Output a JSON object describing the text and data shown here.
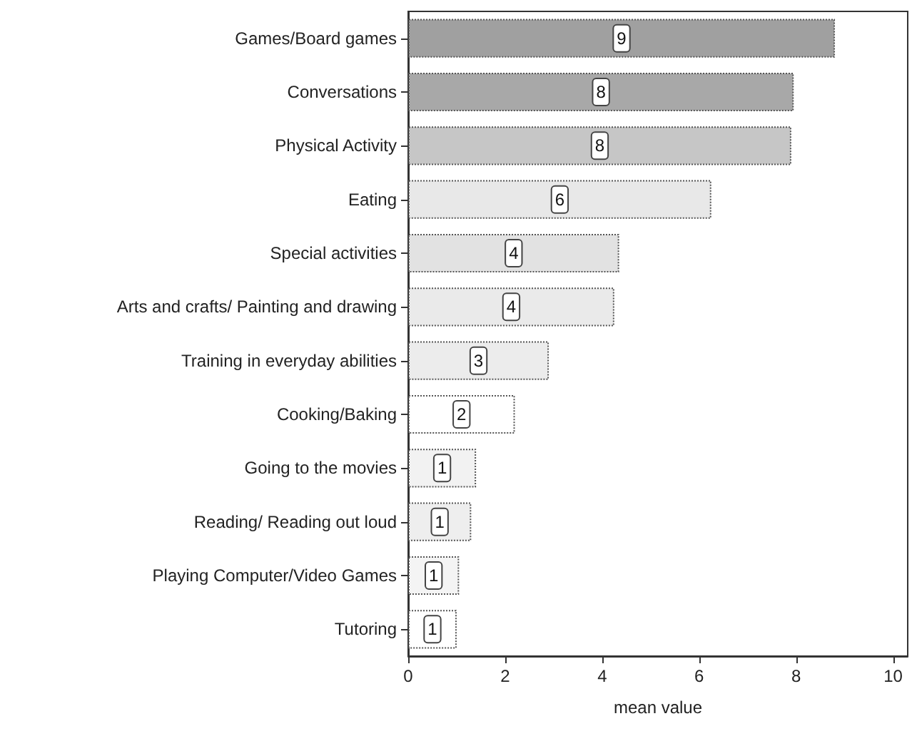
{
  "chart_data": {
    "type": "bar",
    "orientation": "horizontal",
    "xlabel": "mean value",
    "categories": [
      "Games/Board games",
      "Conversations",
      "Physical Activity",
      "Eating",
      "Special activities",
      "Arts and crafts/ Painting and drawing",
      "Training in everyday abilities",
      "Cooking/Baking",
      "Going to the movies",
      "Reading/ Reading out loud",
      "Playing Computer/Video Games",
      "Tutoring"
    ],
    "values": [
      8.8,
      7.95,
      7.9,
      6.25,
      4.35,
      4.25,
      2.9,
      2.2,
      1.4,
      1.3,
      1.05,
      1.0
    ],
    "value_labels": [
      "9",
      "8",
      "8",
      "6",
      "4",
      "4",
      "3",
      "2",
      "1",
      "1",
      "1",
      "1"
    ],
    "colors": [
      "#a0a0a0",
      "#a8a8a8",
      "#c6c6c6",
      "#e8e8e8",
      "#e2e2e2",
      "#eaeaea",
      "#ececec",
      "#ffffff",
      "#f2f2f2",
      "#eeeeee",
      "#f4f4f4",
      "#ffffff"
    ],
    "xlim": [
      0,
      10.3
    ],
    "xticks": [
      0,
      2,
      4,
      6,
      8,
      10
    ]
  }
}
